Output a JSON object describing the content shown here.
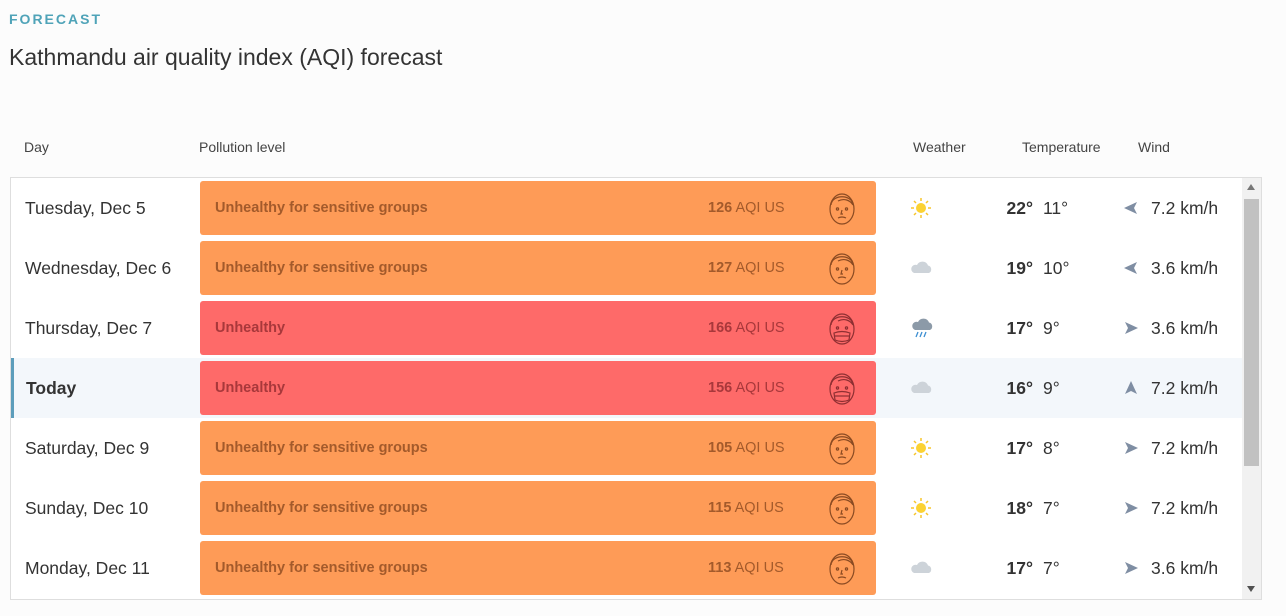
{
  "header": {
    "eyebrow": "FORECAST",
    "title": "Kathmandu air quality index (AQI) forecast"
  },
  "columns": {
    "day": "Day",
    "pollution": "Pollution level",
    "weather": "Weather",
    "temperature": "Temperature",
    "wind": "Wind"
  },
  "colors": {
    "unhealthy_sensitive": "#fe9b57",
    "unhealthy": "#fe6a69",
    "accent": "#4fa3b8",
    "today_highlight": "#f3f7fb"
  },
  "rows": [
    {
      "day": "Tuesday, Dec 5",
      "level": "Unhealthy for sensitive groups",
      "aqi": "126",
      "aqi_unit": "AQI US",
      "weather": "sun-icon",
      "temp_high": "22°",
      "temp_low": "11°",
      "wind_direction": "left",
      "wind": "7.2 km/h"
    },
    {
      "day": "Wednesday, Dec 6",
      "level": "Unhealthy for sensitive groups",
      "aqi": "127",
      "aqi_unit": "AQI US",
      "weather": "cloud-icon",
      "temp_high": "19°",
      "temp_low": "10°",
      "wind_direction": "left",
      "wind": "3.6 km/h"
    },
    {
      "day": "Thursday, Dec 7",
      "level": "Unhealthy",
      "aqi": "166",
      "aqi_unit": "AQI US",
      "weather": "rain-cloud-icon",
      "temp_high": "17°",
      "temp_low": "9°",
      "wind_direction": "right",
      "wind": "3.6 km/h"
    },
    {
      "day": "Today",
      "level": "Unhealthy",
      "aqi": "156",
      "aqi_unit": "AQI US",
      "weather": "cloud-icon",
      "temp_high": "16°",
      "temp_low": "9°",
      "wind_direction": "up",
      "wind": "7.2 km/h"
    },
    {
      "day": "Saturday, Dec 9",
      "level": "Unhealthy for sensitive groups",
      "aqi": "105",
      "aqi_unit": "AQI US",
      "weather": "sun-icon",
      "temp_high": "17°",
      "temp_low": "8°",
      "wind_direction": "right",
      "wind": "7.2 km/h"
    },
    {
      "day": "Sunday, Dec 10",
      "level": "Unhealthy for sensitive groups",
      "aqi": "115",
      "aqi_unit": "AQI US",
      "weather": "sun-icon",
      "temp_high": "18°",
      "temp_low": "7°",
      "wind_direction": "right",
      "wind": "7.2 km/h"
    },
    {
      "day": "Monday, Dec 11",
      "level": "Unhealthy for sensitive groups",
      "aqi": "113",
      "aqi_unit": "AQI US",
      "weather": "cloud-icon",
      "temp_high": "17°",
      "temp_low": "7°",
      "wind_direction": "right",
      "wind": "3.6 km/h"
    }
  ]
}
